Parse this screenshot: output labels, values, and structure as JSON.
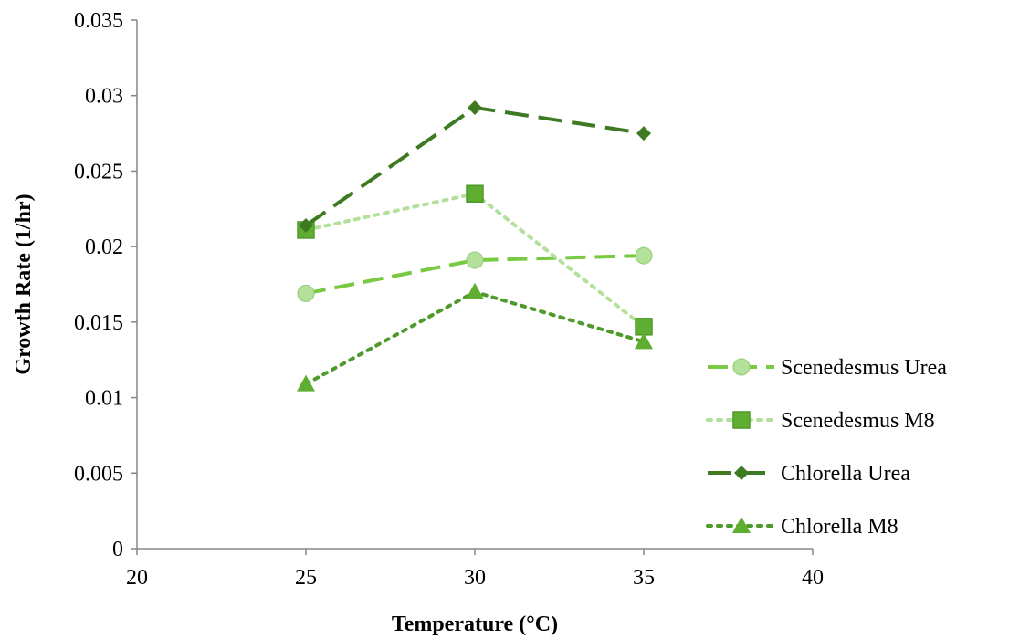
{
  "chart_data": {
    "type": "line",
    "title": "",
    "xlabel": "Temperature (°C)",
    "ylabel": "Growth Rate (1/hr)",
    "xlim": [
      20,
      40
    ],
    "ylim": [
      0,
      0.035
    ],
    "x_ticks": [
      "20",
      "25",
      "30",
      "35",
      "40"
    ],
    "y_ticks": [
      "0",
      "0.005",
      "0.01",
      "0.015",
      "0.02",
      "0.025",
      "0.03",
      "0.035"
    ],
    "grid": false,
    "legend_position": "right",
    "x": [
      25,
      30,
      35
    ],
    "series": [
      {
        "name": "Scenedesmus Urea",
        "values": [
          0.0169,
          0.0191,
          0.0194
        ],
        "color": "#7ac943",
        "marker_color": "#b3e09a",
        "marker": "circle",
        "line_style": "dashed"
      },
      {
        "name": "Scenedesmus M8",
        "values": [
          0.0211,
          0.0235,
          0.0147
        ],
        "color": "#b3e09a",
        "marker_color": "#5fae32",
        "marker": "square",
        "line_style": "dotted"
      },
      {
        "name": "Chlorella Urea",
        "values": [
          0.0214,
          0.0292,
          0.0275
        ],
        "color": "#3d7a22",
        "marker_color": "#3d7a22",
        "marker": "diamond",
        "line_style": "long-dashed"
      },
      {
        "name": "Chlorella M8",
        "values": [
          0.0109,
          0.017,
          0.0137
        ],
        "color": "#4e9a2a",
        "marker_color": "#5fae32",
        "marker": "triangle",
        "line_style": "dotted"
      }
    ]
  }
}
